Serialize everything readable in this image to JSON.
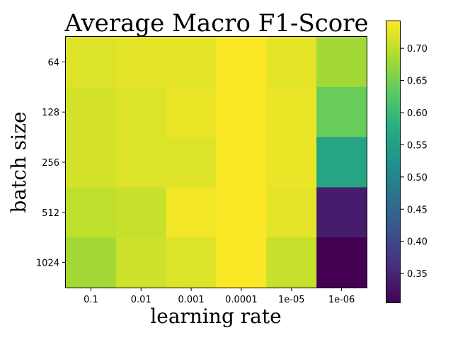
{
  "chart_data": {
    "type": "heatmap",
    "title": "Average Macro F1-Score",
    "xlabel": "learning rate",
    "ylabel": "batch size",
    "x_categories": [
      "0.1",
      "0.01",
      "0.001",
      "0.0001",
      "1e-05",
      "1e-06"
    ],
    "y_categories": [
      "64",
      "128",
      "256",
      "512",
      "1024"
    ],
    "values": [
      [
        0.72,
        0.725,
        0.725,
        0.74,
        0.725,
        0.68
      ],
      [
        0.715,
        0.72,
        0.73,
        0.74,
        0.73,
        0.64
      ],
      [
        0.715,
        0.72,
        0.72,
        0.74,
        0.73,
        0.56
      ],
      [
        0.7,
        0.705,
        0.735,
        0.74,
        0.725,
        0.34
      ],
      [
        0.68,
        0.71,
        0.72,
        0.74,
        0.705,
        0.305
      ]
    ],
    "colorbar": {
      "min": 0.305,
      "max": 0.742,
      "ticks": [
        "0.35",
        "0.40",
        "0.45",
        "0.50",
        "0.55",
        "0.60",
        "0.65",
        "0.70"
      ],
      "colormap": "viridis"
    },
    "grid": false
  }
}
